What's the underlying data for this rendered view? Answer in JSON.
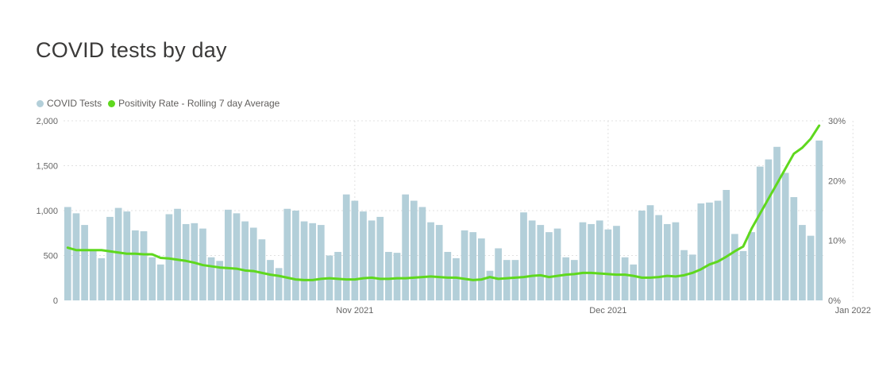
{
  "title": "COVID tests by day",
  "legend": [
    {
      "label": "COVID Tests",
      "color": "#b3cfd9"
    },
    {
      "label": "Positivity Rate - Rolling 7 day Average",
      "color": "#5fd81e"
    }
  ],
  "chart_data": {
    "type": "bar",
    "title": "COVID tests by day",
    "x_tick_labels": [
      "Nov 2021",
      "Dec 2021",
      "Jan 2022"
    ],
    "x_tick_index": [
      34,
      64,
      93
    ],
    "y_left": {
      "ticks": [
        "0",
        "500",
        "1,000",
        "1,500",
        "2,000"
      ],
      "ylim": [
        0,
        2000
      ]
    },
    "y_right": {
      "ticks": [
        "0%",
        "10%",
        "20%",
        "30%"
      ],
      "ylim": [
        0,
        30
      ]
    },
    "grid": true,
    "legend_position": "top-left",
    "series": [
      {
        "name": "COVID Tests",
        "type": "bar",
        "axis": "left",
        "color": "#b3cfd9",
        "values": [
          1040,
          970,
          840,
          570,
          470,
          930,
          1030,
          990,
          780,
          770,
          480,
          400,
          960,
          1020,
          850,
          860,
          800,
          480,
          440,
          1010,
          970,
          880,
          810,
          680,
          450,
          360,
          1020,
          1000,
          880,
          860,
          840,
          500,
          540,
          1180,
          1110,
          990,
          890,
          930,
          540,
          530,
          1180,
          1110,
          1040,
          870,
          840,
          540,
          470,
          780,
          760,
          690,
          330,
          580,
          450,
          450,
          980,
          890,
          840,
          760,
          800,
          480,
          450,
          870,
          850,
          890,
          790,
          830,
          480,
          400,
          1000,
          1060,
          950,
          850,
          870,
          560,
          510,
          1080,
          1090,
          1110,
          1230,
          740,
          550,
          760,
          1490,
          1570,
          1710,
          1420,
          1150,
          840,
          720,
          1780
        ]
      },
      {
        "name": "Positivity Rate - Rolling 7 day Average",
        "type": "line",
        "axis": "right",
        "color": "#5fd81e",
        "values": [
          8.8,
          8.4,
          8.4,
          8.4,
          8.4,
          8.2,
          8.0,
          7.8,
          7.8,
          7.7,
          7.7,
          7.1,
          7.0,
          6.8,
          6.6,
          6.3,
          5.9,
          5.7,
          5.5,
          5.4,
          5.3,
          5.0,
          4.9,
          4.6,
          4.3,
          4.1,
          3.8,
          3.5,
          3.4,
          3.4,
          3.6,
          3.7,
          3.6,
          3.5,
          3.5,
          3.7,
          3.8,
          3.6,
          3.6,
          3.7,
          3.7,
          3.8,
          3.9,
          4.0,
          3.9,
          3.8,
          3.8,
          3.6,
          3.4,
          3.5,
          3.9,
          3.6,
          3.7,
          3.8,
          3.9,
          4.1,
          4.2,
          3.9,
          4.1,
          4.3,
          4.4,
          4.6,
          4.6,
          4.5,
          4.4,
          4.3,
          4.3,
          4.1,
          3.8,
          3.8,
          3.9,
          4.1,
          4.0,
          4.2,
          4.6,
          5.2,
          6.0,
          6.5,
          7.3,
          8.2,
          9.0,
          12.0,
          14.5,
          17.0,
          19.5,
          22.0,
          24.5,
          25.5,
          27.0,
          29.2
        ]
      }
    ]
  }
}
